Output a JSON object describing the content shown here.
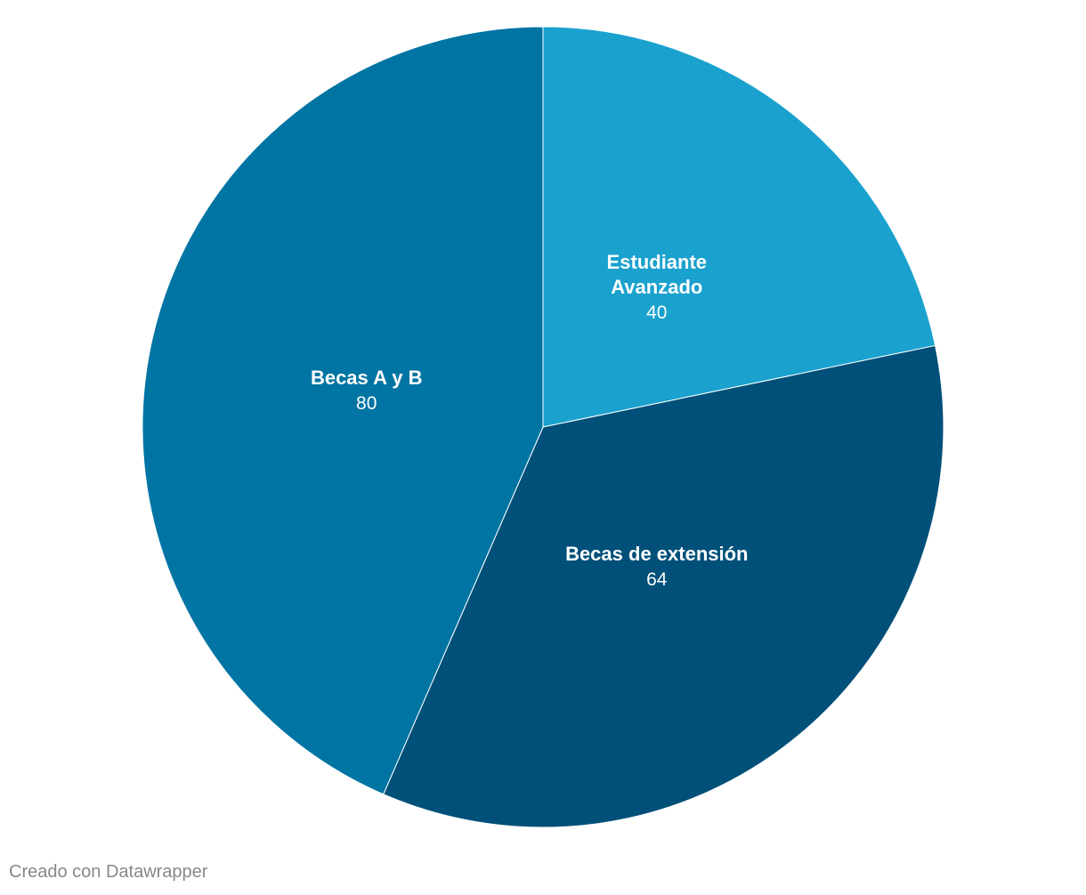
{
  "chart_data": {
    "type": "pie",
    "slices": [
      {
        "label": [
          "Estudiante",
          "Avanzado"
        ],
        "value": 40,
        "value_text": "40",
        "color": "#1aa1ce"
      },
      {
        "label": [
          "Becas de extensión"
        ],
        "value": 64,
        "value_text": "64",
        "color": "#005079"
      },
      {
        "label": [
          "Becas A y B"
        ],
        "value": 80,
        "value_text": "80",
        "color": "#0074a3"
      }
    ],
    "start_angle": "top",
    "direction": "clockwise",
    "separator_color": "#ffffff",
    "legend": "none"
  },
  "footer": {
    "credit": "Creado con Datawrapper"
  }
}
